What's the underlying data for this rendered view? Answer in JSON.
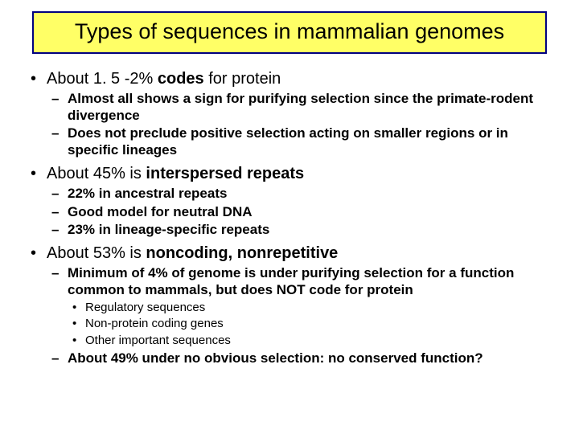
{
  "colors": {
    "title_bg": "#ffff66",
    "title_border": "#000080",
    "title_text": "#000000",
    "body_text": "#000000",
    "slide_bg": "#ffffff"
  },
  "title": "Types of sequences in mammalian genomes",
  "b1": {
    "pre": "About 1. 5 -2% ",
    "bold": "codes",
    "post": " for protein",
    "s1": "Almost all shows a sign for purifying selection since the primate-rodent divergence",
    "s2": "Does not preclude positive selection acting on smaller regions or in specific lineages"
  },
  "b2": {
    "pre": "About 45% is ",
    "bold": "interspersed repeats",
    "s1": "22% in ancestral repeats",
    "s2": "Good model for neutral DNA",
    "s3": "23% in lineage-specific repeats"
  },
  "b3": {
    "pre": "About 53% is ",
    "bold": "noncoding, nonrepetitive",
    "s1": "Minimum of 4% of genome is under purifying selection for a function common to mammals, but does NOT code for protein",
    "s1a": "Regulatory sequences",
    "s1b": "Non-protein coding genes",
    "s1c": "Other important sequences",
    "s2": "About 49% under no obvious selection: no conserved function?"
  }
}
